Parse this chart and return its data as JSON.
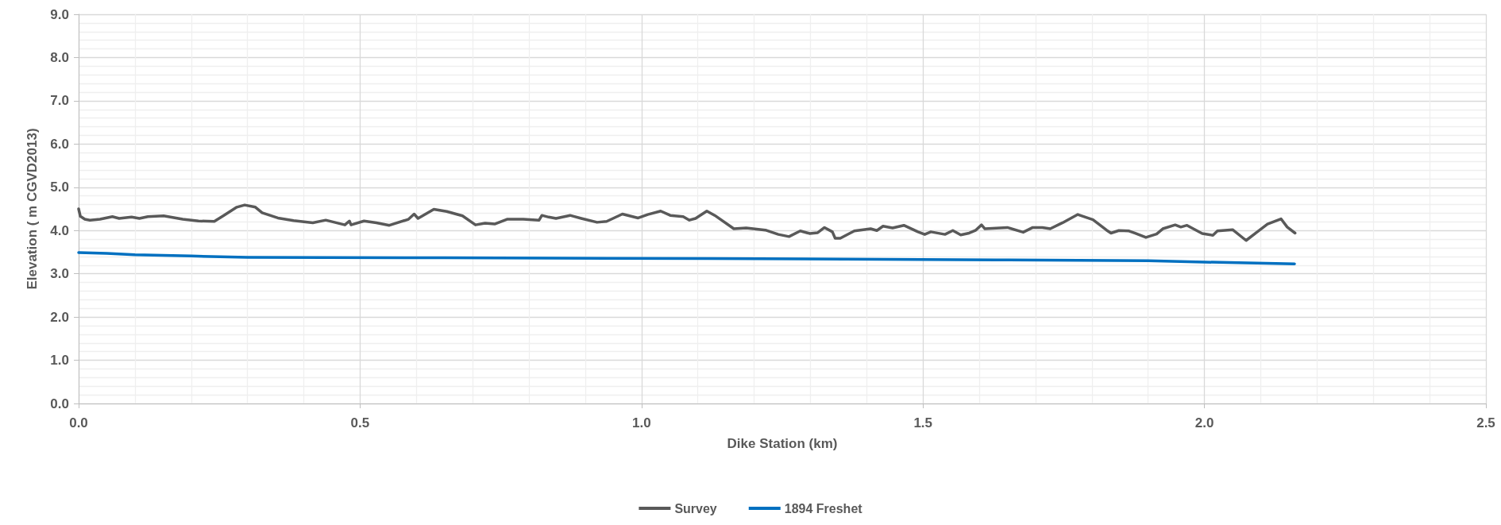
{
  "chart_data": {
    "type": "line",
    "xlabel": "Dike Station (km)",
    "ylabel": "Elevation ( m CGVD2013)",
    "xlim": [
      0,
      2.5
    ],
    "xticks": [
      {
        "value": 0,
        "label": "0.0"
      },
      0.5,
      {
        "value": 1,
        "label": "1.0"
      },
      1.5,
      {
        "value": 2,
        "label": "2.0"
      },
      2.5
    ],
    "ylim": [
      0,
      9
    ],
    "yticks": [
      {
        "value": 0,
        "label": "0.0"
      },
      {
        "value": 1,
        "label": "1.0"
      },
      {
        "value": 2,
        "label": "2.0"
      },
      {
        "value": 3,
        "label": "3.0"
      },
      {
        "value": 4,
        "label": "4.0"
      },
      {
        "value": 5,
        "label": "5.0"
      },
      {
        "value": 6,
        "label": "6.0"
      },
      {
        "value": 7,
        "label": "7.0"
      },
      {
        "value": 8,
        "label": "8.0"
      },
      {
        "value": 9,
        "label": "9.0"
      }
    ],
    "grid": true,
    "legend": "bottom",
    "marker": "none",
    "line_style": "solid",
    "series": [
      {
        "name": "Survey",
        "color": "#595959",
        "x": [
          0,
          0.003,
          0.011,
          0.02,
          0.038,
          0.06,
          0.072,
          0.094,
          0.108,
          0.123,
          0.151,
          0.185,
          0.213,
          0.241,
          0.258,
          0.281,
          0.295,
          0.314,
          0.326,
          0.354,
          0.382,
          0.416,
          0.439,
          0.473,
          0.481,
          0.484,
          0.507,
          0.529,
          0.552,
          0.586,
          0.596,
          0.603,
          0.631,
          0.654,
          0.682,
          0.705,
          0.722,
          0.739,
          0.761,
          0.79,
          0.818,
          0.823,
          0.835,
          0.848,
          0.873,
          0.893,
          0.921,
          0.938,
          0.966,
          0.994,
          1.011,
          1.034,
          1.051,
          1.074,
          1.085,
          1.096,
          1.116,
          1.13,
          1.164,
          1.186,
          1.22,
          1.243,
          1.262,
          1.282,
          1.299,
          1.313,
          1.325,
          1.339,
          1.344,
          1.353,
          1.378,
          1.407,
          1.418,
          1.429,
          1.446,
          1.466,
          1.491,
          1.503,
          1.514,
          1.539,
          1.553,
          1.567,
          1.582,
          1.593,
          1.604,
          1.61,
          1.65,
          1.678,
          1.695,
          1.712,
          1.726,
          1.748,
          1.775,
          1.802,
          1.826,
          1.834,
          1.848,
          1.866,
          1.876,
          1.896,
          1.915,
          1.926,
          1.948,
          1.958,
          1.969,
          1.996,
          2.015,
          2.023,
          2.05,
          2.074,
          2.093,
          2.112,
          2.136,
          2.147,
          2.161
        ],
        "values": [
          4.5,
          4.33,
          4.26,
          4.24,
          4.26,
          4.32,
          4.28,
          4.31,
          4.28,
          4.32,
          4.34,
          4.26,
          4.22,
          4.21,
          4.35,
          4.54,
          4.59,
          4.54,
          4.41,
          4.29,
          4.23,
          4.18,
          4.24,
          4.13,
          4.22,
          4.13,
          4.22,
          4.18,
          4.12,
          4.26,
          4.38,
          4.28,
          4.49,
          4.44,
          4.34,
          4.13,
          4.17,
          4.15,
          4.26,
          4.26,
          4.24,
          4.35,
          4.31,
          4.28,
          4.35,
          4.28,
          4.19,
          4.21,
          4.38,
          4.29,
          4.37,
          4.45,
          4.35,
          4.32,
          4.24,
          4.28,
          4.45,
          4.35,
          4.04,
          4.06,
          4.01,
          3.91,
          3.86,
          3.99,
          3.93,
          3.95,
          4.07,
          3.97,
          3.82,
          3.82,
          3.99,
          4.04,
          4.0,
          4.1,
          4.06,
          4.12,
          3.97,
          3.91,
          3.97,
          3.91,
          4.0,
          3.9,
          3.94,
          4.0,
          4.13,
          4.04,
          4.07,
          3.96,
          4.07,
          4.07,
          4.04,
          4.18,
          4.37,
          4.25,
          4.01,
          3.94,
          4.0,
          3.99,
          3.94,
          3.84,
          3.92,
          4.04,
          4.13,
          4.08,
          4.12,
          3.93,
          3.89,
          3.99,
          4.02,
          3.77,
          3.96,
          4.15,
          4.27,
          4.08,
          3.94
        ]
      },
      {
        "name": "1894 Freshet",
        "color": "#0070c0",
        "x": [
          0,
          0.05,
          0.1,
          0.2,
          0.3,
          0.65,
          1.12,
          1.36,
          1.63,
          1.9,
          2.0,
          2.16
        ],
        "values": [
          3.49,
          3.47,
          3.44,
          3.41,
          3.38,
          3.37,
          3.35,
          3.34,
          3.32,
          3.3,
          3.27,
          3.23
        ]
      }
    ]
  }
}
